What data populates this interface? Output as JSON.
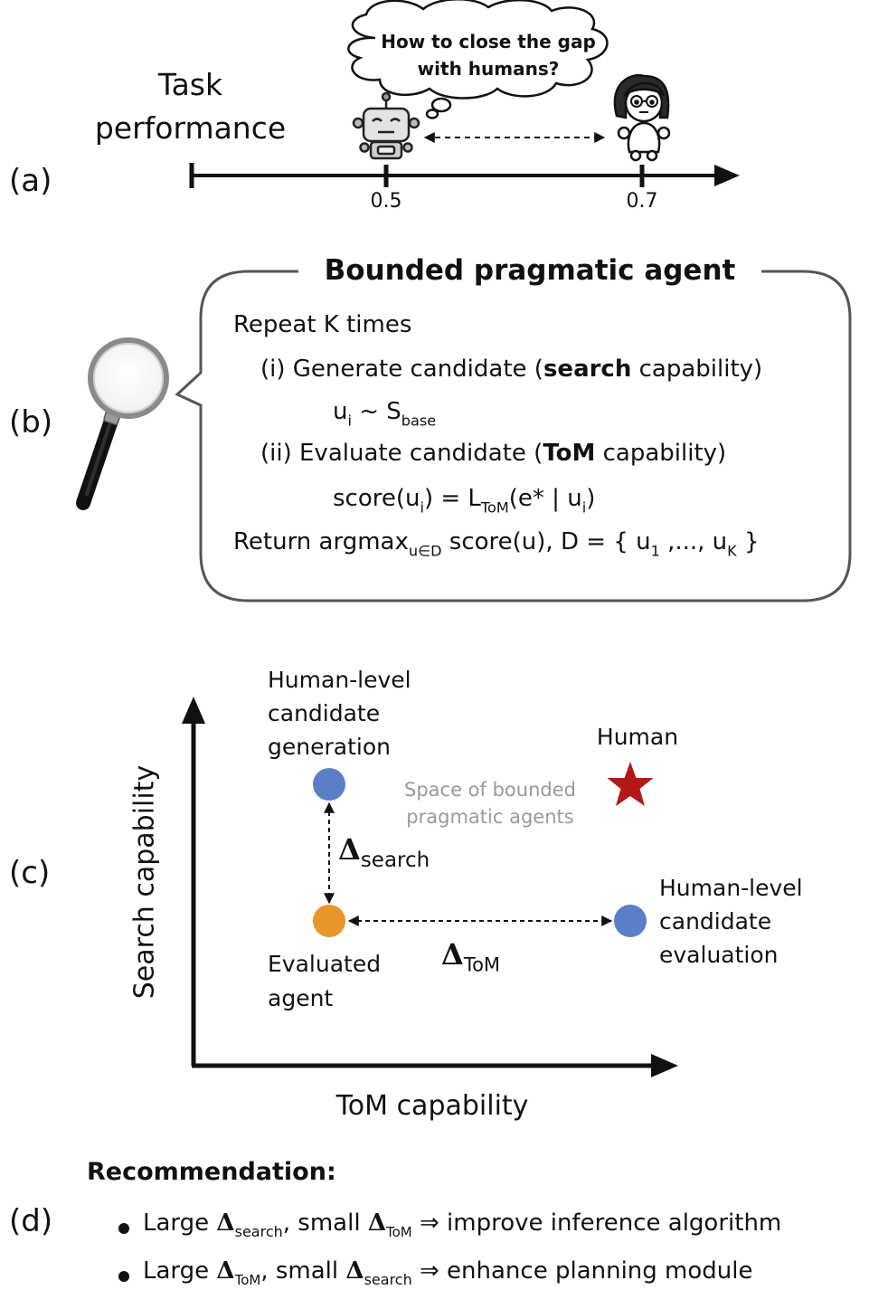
{
  "panels": {
    "a": "(a)",
    "b": "(b)",
    "c": "(c)",
    "d": "(d)"
  },
  "section_a": {
    "axis_label_line1": "Task",
    "axis_label_line2": "performance",
    "thought_line1": "How to close the gap",
    "thought_line2": "with humans?",
    "tick_robot": "0.5",
    "tick_human": "0.7",
    "robot_icon": "robot-icon",
    "human_icon": "human-icon"
  },
  "section_b": {
    "title": "Bounded pragmatic agent",
    "repeat": "Repeat K times",
    "gen_prefix": "(i) Generate candidate (",
    "gen_bold": "search",
    "gen_suffix": " capability)",
    "sample_u": "u",
    "sample_i": "i",
    "sample_mid": " ~ S",
    "sample_sub": "base",
    "eval_prefix": "(ii) Evaluate candidate (",
    "eval_bold": "ToM",
    "eval_suffix": " capability)",
    "score_a": "score(u",
    "score_i": "i",
    "score_b": ") = L",
    "score_sub": "ToM",
    "score_c": "(e* | u",
    "score_i2": "i",
    "score_d": ")",
    "ret_a": "Return argmax",
    "ret_sub": "u∈D",
    "ret_b": " score(u), D = { u",
    "ret_sub1": "1",
    "ret_c": " ,..., u",
    "ret_subK": "K",
    "ret_d": " }",
    "magnifier_icon": "magnifying-glass-icon"
  },
  "section_c": {
    "y_axis": "Search capability",
    "x_axis": "ToM capability",
    "top_left_label": [
      "Human-level",
      "candidate",
      "generation"
    ],
    "human_label": "Human",
    "space_label": [
      "Space of bounded",
      "pragmatic agents"
    ],
    "delta": "Δ",
    "delta_search_sub": "search",
    "delta_tom_sub": "ToM",
    "evaluated_label": [
      "Evaluated",
      "agent"
    ],
    "right_label": [
      "Human-level",
      "candidate",
      "evaluation"
    ],
    "colors": {
      "blue": "#5b7fc6",
      "orange": "#e7962b",
      "star": "#b51717"
    }
  },
  "section_d": {
    "title": "Recommendation:",
    "item1": {
      "large": "Large ",
      "delta": "Δ",
      "sub1": "search",
      "mid": ", small ",
      "sub2": "ToM",
      "action": " ⇒ improve inference algorithm"
    },
    "item2": {
      "large": "Large ",
      "delta": "Δ",
      "sub1": "ToM",
      "mid": ", small ",
      "sub2": "search",
      "action": " ⇒ enhance planning module"
    }
  }
}
